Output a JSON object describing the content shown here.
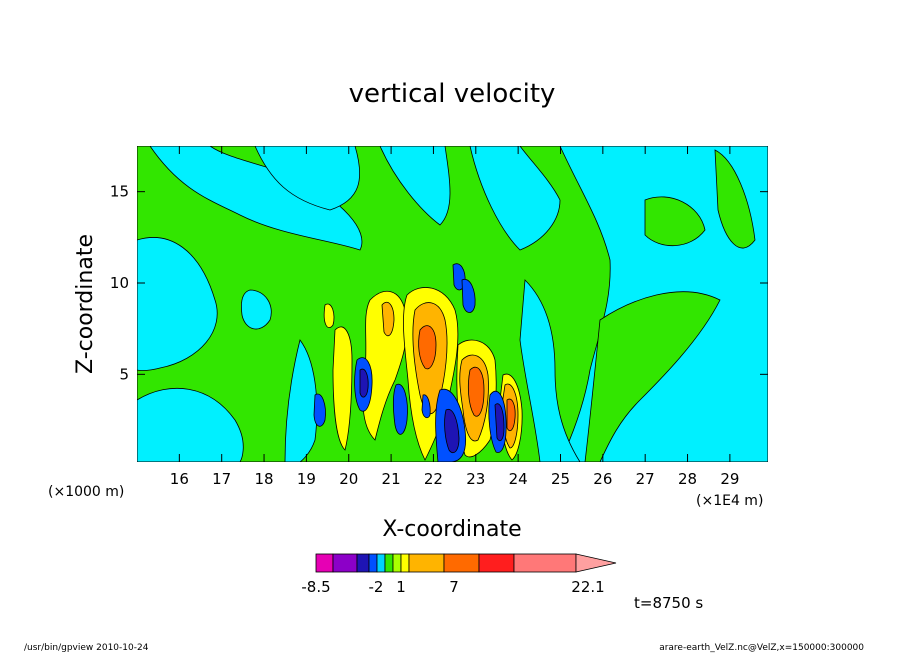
{
  "chart_data": {
    "type": "heatmap",
    "title": "vertical velocity",
    "xlabel": "X-coordinate",
    "ylabel": "Z-coordinate",
    "x_unit_left": "(×1000 m)",
    "x_unit_right": "(×1E4 m)",
    "x_ticks": [
      "16",
      "17",
      "18",
      "19",
      "20",
      "21",
      "22",
      "23",
      "24",
      "25",
      "26",
      "27",
      "28",
      "29"
    ],
    "y_ticks": [
      "5",
      "10",
      "15"
    ],
    "xlim": [
      15.0,
      29.9
    ],
    "ylim": [
      0.2,
      17.5
    ],
    "grid": false,
    "colorbar": {
      "labels": [
        "-8.5",
        "-2",
        "1",
        "7",
        "22.1"
      ],
      "colors": [
        "#e600b4",
        "#8c00c8",
        "#1e14b4",
        "#0050ff",
        "#00d2ff",
        "#32e600",
        "#aaff00",
        "#ffff00",
        "#ffb400",
        "#ff6a00",
        "#ff1e1e",
        "#ff7878"
      ]
    },
    "time_label": "t=8750 s",
    "cells": [
      {
        "x": 15.4,
        "z": 9.0,
        "v": 0.3
      },
      {
        "x": 16.6,
        "z": 12.5,
        "v": 0.3
      },
      {
        "x": 18.0,
        "z": 9.0,
        "v": 0.3
      },
      {
        "x": 19.5,
        "z": 14.0,
        "v": 0.3
      },
      {
        "x": 21.0,
        "z": 13.0,
        "v": 0.3
      },
      {
        "x": 25.0,
        "z": 11.0,
        "v": 0.3
      },
      {
        "x": 27.0,
        "z": 7.0,
        "v": 0.3
      },
      {
        "x": 29.0,
        "z": 12.0,
        "v": 0.3
      },
      {
        "x": 20.1,
        "z": 6.0,
        "v": 3.0
      },
      {
        "x": 20.9,
        "z": 6.0,
        "v": 3.0
      },
      {
        "x": 21.8,
        "z": 7.5,
        "v": 6.0
      },
      {
        "x": 22.4,
        "z": 7.0,
        "v": 6.0
      },
      {
        "x": 23.3,
        "z": 5.0,
        "v": 9.0
      },
      {
        "x": 23.9,
        "z": 3.5,
        "v": 12.0
      },
      {
        "x": 20.5,
        "z": 4.5,
        "v": -3.0
      },
      {
        "x": 19.4,
        "z": 3.0,
        "v": -3.0
      },
      {
        "x": 21.4,
        "z": 3.5,
        "v": -3.0
      },
      {
        "x": 22.6,
        "z": 2.0,
        "v": -3.0
      },
      {
        "x": 23.8,
        "z": 3.0,
        "v": -6.0
      },
      {
        "x": 23.0,
        "z": 11.0,
        "v": -3.0
      }
    ]
  },
  "footer": {
    "left": "/usr/bin/gpview   2010-10-24",
    "right": "arare-earth_VelZ.nc@VelZ,x=150000:300000"
  }
}
